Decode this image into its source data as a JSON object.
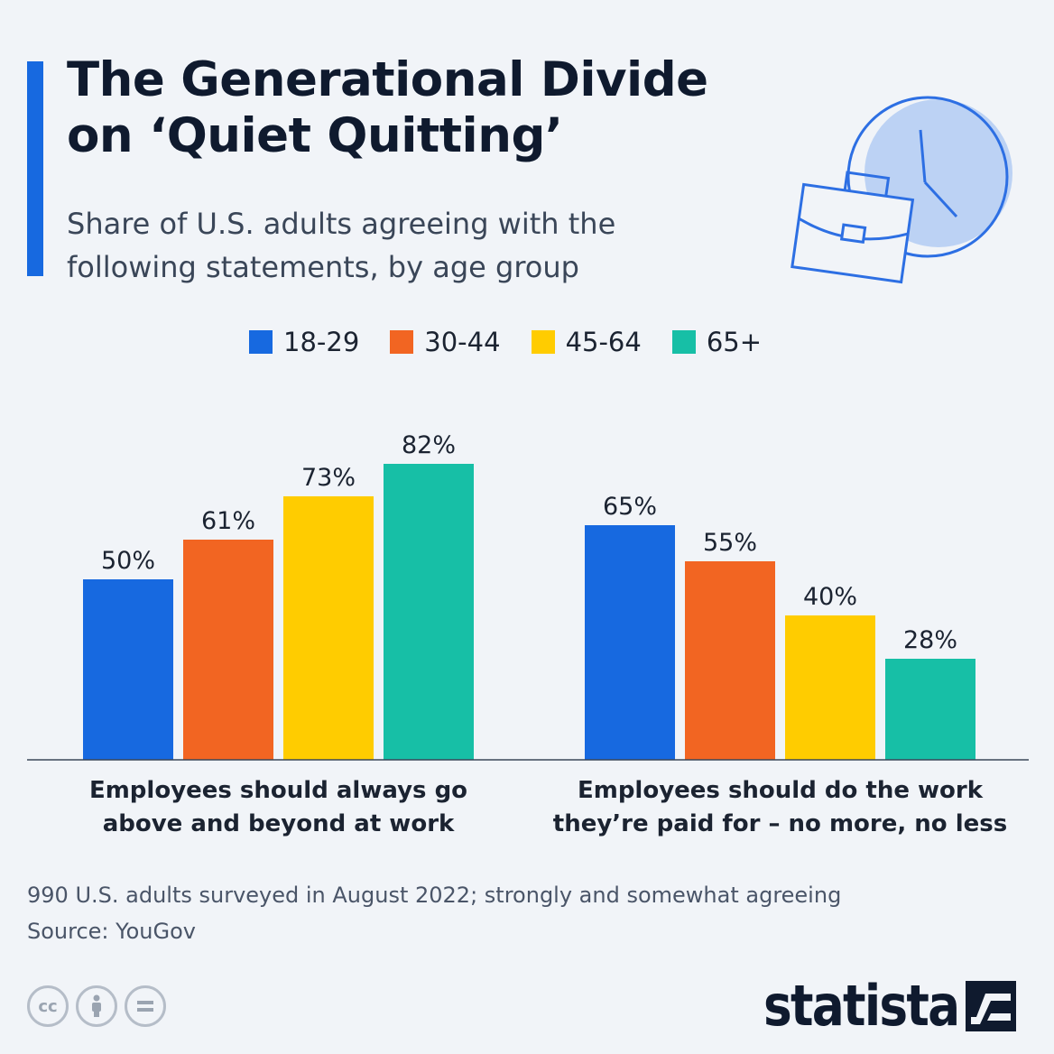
{
  "title_line1": "The Generational Divide",
  "title_line2": "on ‘Quiet Quitting’",
  "subtitle_line1": "Share of U.S. adults agreeing with the",
  "subtitle_line2": "following statements, by age group",
  "legend": [
    {
      "label": "18-29",
      "color": "#1769e0"
    },
    {
      "label": "30-44",
      "color": "#f26522"
    },
    {
      "label": "45-64",
      "color": "#ffcc00"
    },
    {
      "label": "65+",
      "color": "#17bfa6"
    }
  ],
  "chart_data": {
    "type": "bar",
    "categories": [
      [
        "Employees should always go",
        "above and beyond at work"
      ],
      [
        "Employees should do the work",
        "they’re paid for – no more, no less"
      ]
    ],
    "series": [
      {
        "name": "18-29",
        "values": [
          50,
          65
        ],
        "color": "#1769e0"
      },
      {
        "name": "30-44",
        "values": [
          61,
          55
        ],
        "color": "#f26522"
      },
      {
        "name": "45-64",
        "values": [
          73,
          40
        ],
        "color": "#ffcc00"
      },
      {
        "name": "65+",
        "values": [
          82,
          28
        ],
        "color": "#17bfa6"
      }
    ],
    "value_suffix": "%",
    "ylim": [
      0,
      100
    ],
    "grid": false,
    "legend_placement": "top"
  },
  "note_line1": "990 U.S. adults surveyed in August 2022; strongly and somewhat agreeing",
  "note_line2": "Source: YouGov",
  "license_icons": [
    "cc-icon",
    "by-icon",
    "nd-icon"
  ],
  "brand": "statista"
}
